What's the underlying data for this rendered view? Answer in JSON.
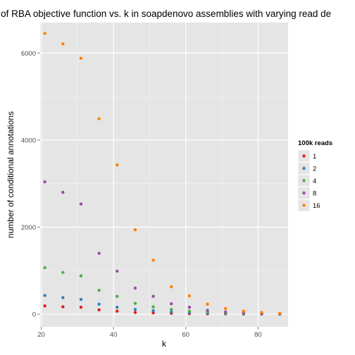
{
  "chart_data": {
    "type": "scatter",
    "title": "n of RBA objective function vs. k in soapdenovo assemblies with varying read de",
    "xlabel": "k",
    "ylabel": "number of conditional annotations",
    "xlim": [
      19.7,
      88.3
    ],
    "ylim": [
      -290,
      6700
    ],
    "x_ticks": [
      20,
      40,
      60,
      80
    ],
    "y_ticks": [
      0,
      2000,
      4000,
      6000
    ],
    "grid": true,
    "legend": {
      "title": "100k reads",
      "placement": "right"
    },
    "x": [
      21,
      26,
      31,
      36,
      41,
      46,
      51,
      56,
      61,
      66,
      71,
      76,
      81,
      86
    ],
    "series": [
      {
        "name": "1",
        "color": "#E41A1C",
        "values": [
          190,
          170,
          160,
          100,
          70,
          40,
          30,
          20,
          15,
          10,
          8,
          5,
          3,
          2
        ]
      },
      {
        "name": "2",
        "color": "#377EB8",
        "values": [
          430,
          380,
          340,
          230,
          160,
          110,
          80,
          50,
          35,
          25,
          15,
          10,
          5,
          3
        ]
      },
      {
        "name": "4",
        "color": "#4DAF4A",
        "values": [
          1070,
          960,
          880,
          550,
          410,
          250,
          170,
          110,
          70,
          50,
          30,
          20,
          10,
          5
        ]
      },
      {
        "name": "8",
        "color": "#984EA3",
        "values": [
          3040,
          2800,
          2530,
          1400,
          990,
          600,
          410,
          240,
          160,
          90,
          50,
          30,
          15,
          8
        ]
      },
      {
        "name": "16",
        "color": "#FF7F00",
        "values": [
          6450,
          6210,
          5880,
          4490,
          3430,
          1940,
          1240,
          630,
          420,
          230,
          130,
          70,
          40,
          20
        ]
      }
    ]
  }
}
